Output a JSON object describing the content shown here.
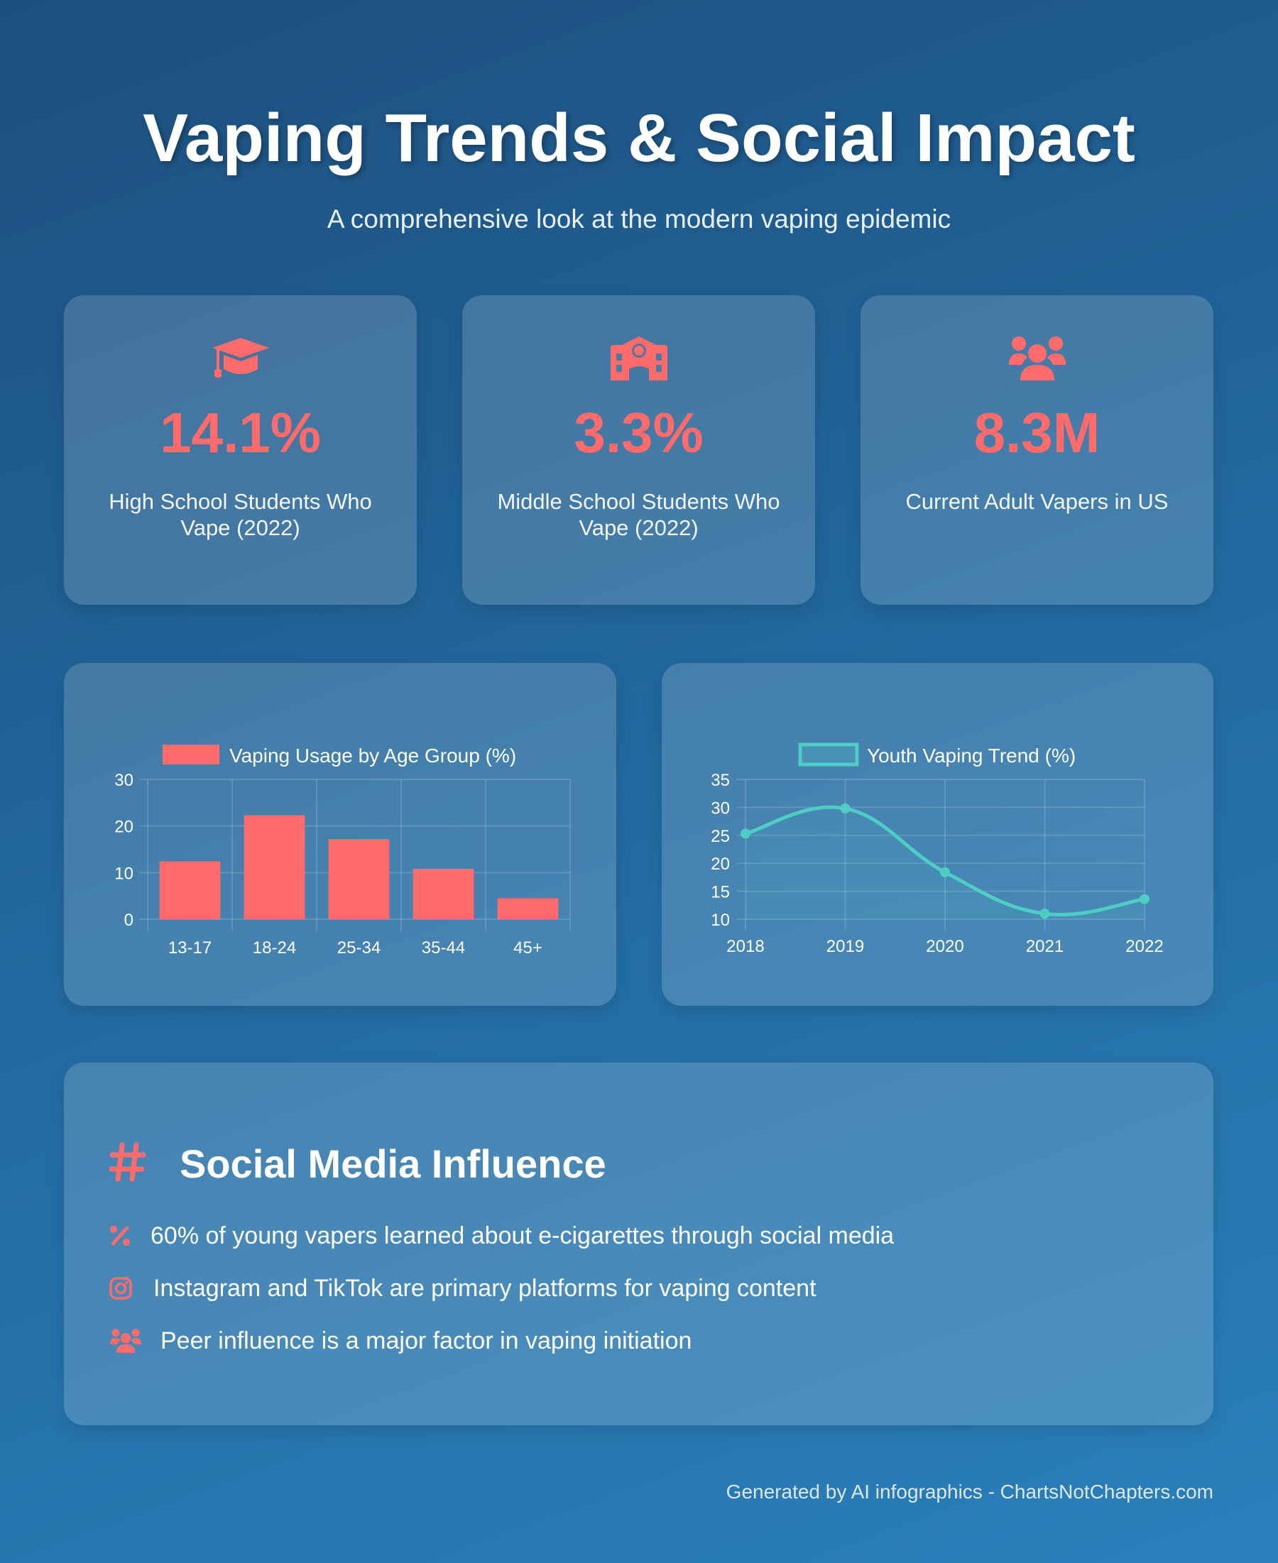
{
  "header": {
    "title": "Vaping Trends & Social Impact",
    "subtitle": "A comprehensive look at the modern vaping epidemic"
  },
  "stats": [
    {
      "icon": "graduation-cap-icon",
      "value": "14.1%",
      "label": "High School Students Who Vape (2022)"
    },
    {
      "icon": "school-icon",
      "value": "3.3%",
      "label": "Middle School Students Who Vape (2022)"
    },
    {
      "icon": "users-icon",
      "value": "8.3M",
      "label": "Current Adult Vapers in US"
    }
  ],
  "accent": "#ff6b6b",
  "chart_data": [
    {
      "type": "bar",
      "categories": [
        "13-17",
        "18-24",
        "25-34",
        "35-44",
        "45+"
      ],
      "series": [
        {
          "name": "Vaping Usage by Age Group (%)",
          "values": [
            12.4,
            22.3,
            17.2,
            10.8,
            4.5
          ],
          "color": "#ff6b6b"
        }
      ],
      "ylim": [
        0,
        30
      ],
      "yticks": [
        0,
        10,
        20,
        30
      ],
      "grid": true,
      "legend": "top"
    },
    {
      "type": "line",
      "categories": [
        "2018",
        "2019",
        "2020",
        "2021",
        "2022"
      ],
      "series": [
        {
          "name": "Youth Vaping Trend (%)",
          "values": [
            25.3,
            29.8,
            18.4,
            11.0,
            13.6
          ],
          "color": "#4ecdc4"
        }
      ],
      "ylim": [
        10,
        35
      ],
      "yticks": [
        10,
        15,
        20,
        25,
        30,
        35
      ],
      "grid": true,
      "legend": "top",
      "smooth": true,
      "fill": true
    }
  ],
  "social": {
    "title": "Social Media Influence",
    "icon": "hashtag-icon",
    "items": [
      {
        "icon": "percent-icon",
        "text": "60% of young vapers learned about e-cigarettes through social media"
      },
      {
        "icon": "instagram-icon",
        "text": "Instagram and TikTok are primary platforms for vaping content"
      },
      {
        "icon": "users-icon",
        "text": "Peer influence is a major factor in vaping initiation"
      }
    ]
  },
  "footer": "Generated by AI infographics - ChartsNotChapters.com"
}
